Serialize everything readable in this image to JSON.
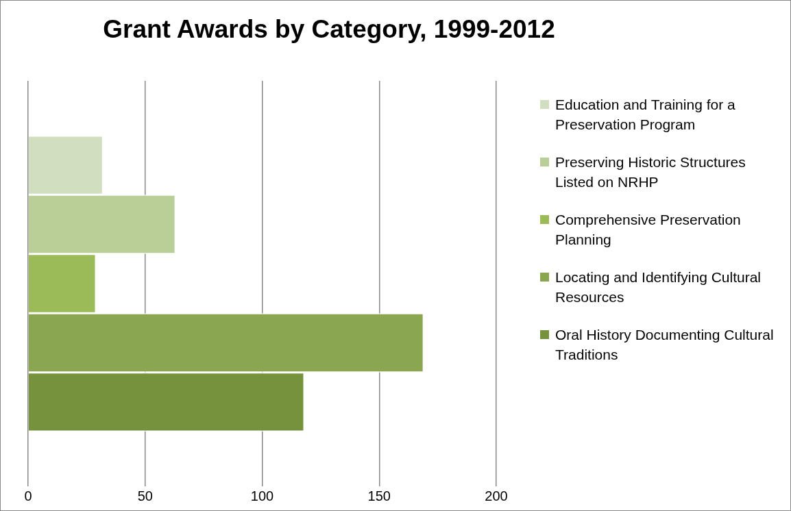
{
  "chart_data": {
    "type": "bar",
    "orientation": "horizontal",
    "title": "Grant Awards by Category, 1999-2012",
    "categories": [
      null
    ],
    "series": [
      {
        "name": "Education and Training for a Preservation Program",
        "color": "#d1dfc0",
        "values": [
          32
        ]
      },
      {
        "name": "Preserving Historic Structures Listed on NRHP",
        "color": "#bace98",
        "values": [
          63
        ]
      },
      {
        "name": "Comprehensive Preservation Planning",
        "color": "#9bbb59",
        "values": [
          29
        ]
      },
      {
        "name": "Locating and Identifying Cultural Resources",
        "color": "#8aa650",
        "values": [
          169
        ]
      },
      {
        "name": "Oral History Documenting Cultural Traditions",
        "color": "#76923c",
        "values": [
          118
        ]
      }
    ],
    "xlim": [
      0,
      200
    ],
    "xticks": [
      0,
      50,
      100,
      150,
      200
    ],
    "grid": "x",
    "legend": "right"
  }
}
